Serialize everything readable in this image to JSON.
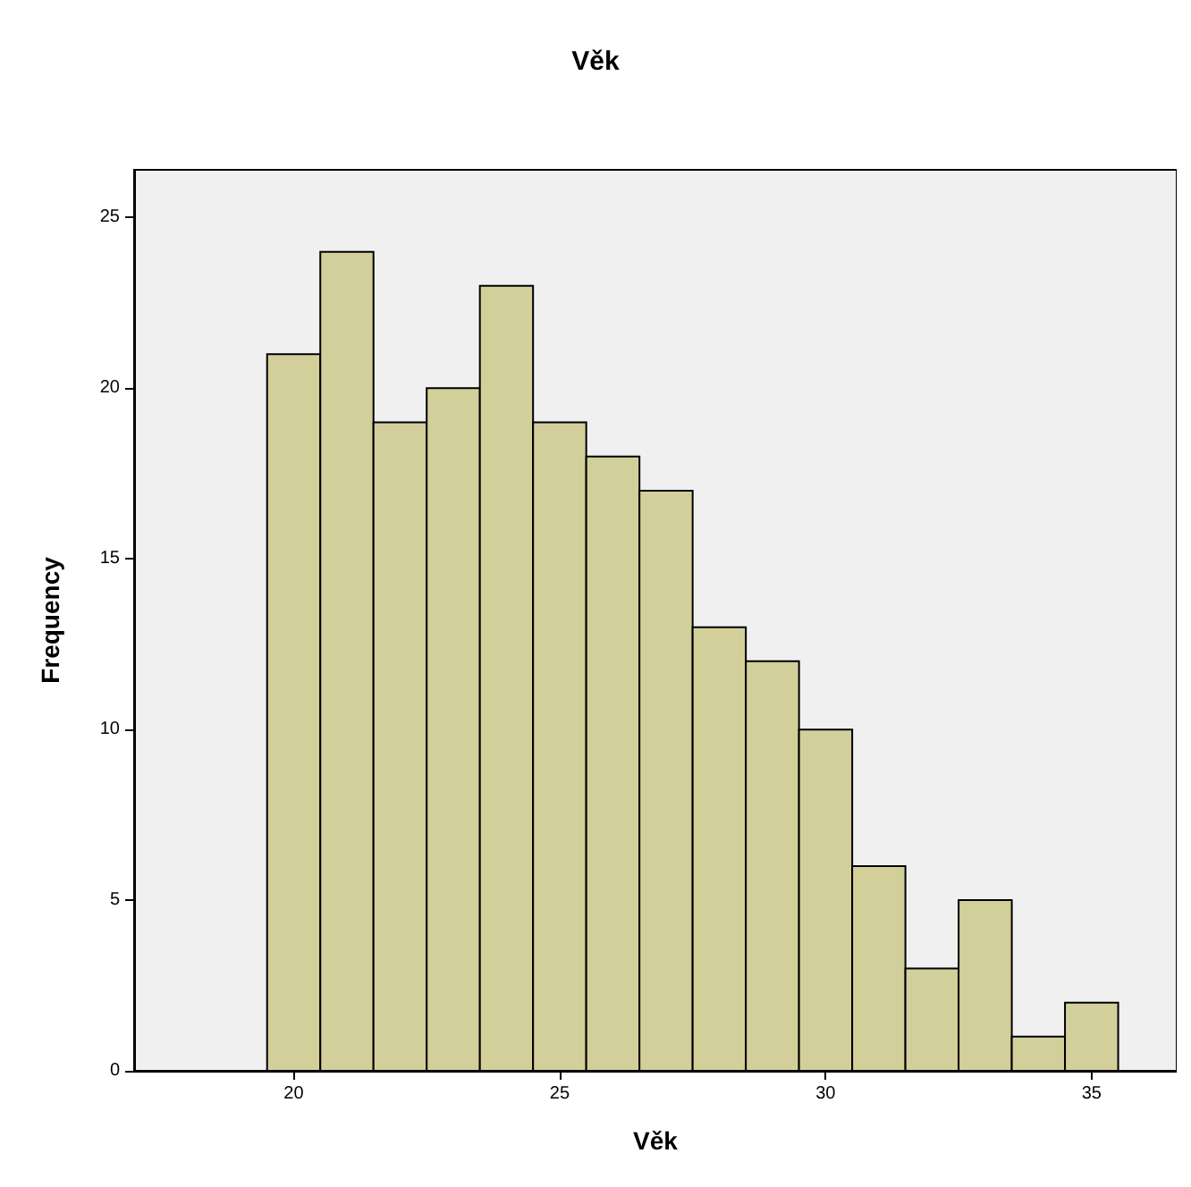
{
  "chart_data": {
    "type": "histogram",
    "title": "Věk",
    "xlabel": "Věk",
    "ylabel": "Frequency",
    "bins": [
      19.5,
      20.5,
      21.5,
      22.5,
      23.5,
      24.5,
      25.5,
      26.5,
      27.5,
      28.5,
      29.5,
      30.5,
      31.5,
      32.5,
      33.5,
      34.5,
      35.5
    ],
    "values": [
      21,
      24,
      19,
      20,
      23,
      19,
      18,
      17,
      13,
      12,
      10,
      6,
      3,
      5,
      1,
      2
    ],
    "color": "#d3cf9b",
    "xlim": [
      17,
      36.6
    ],
    "xticks": [
      20,
      25,
      30,
      35
    ],
    "ylim": [
      0,
      26.4
    ],
    "yticks": [
      0,
      5,
      10,
      15,
      20,
      25
    ],
    "grid": false
  }
}
